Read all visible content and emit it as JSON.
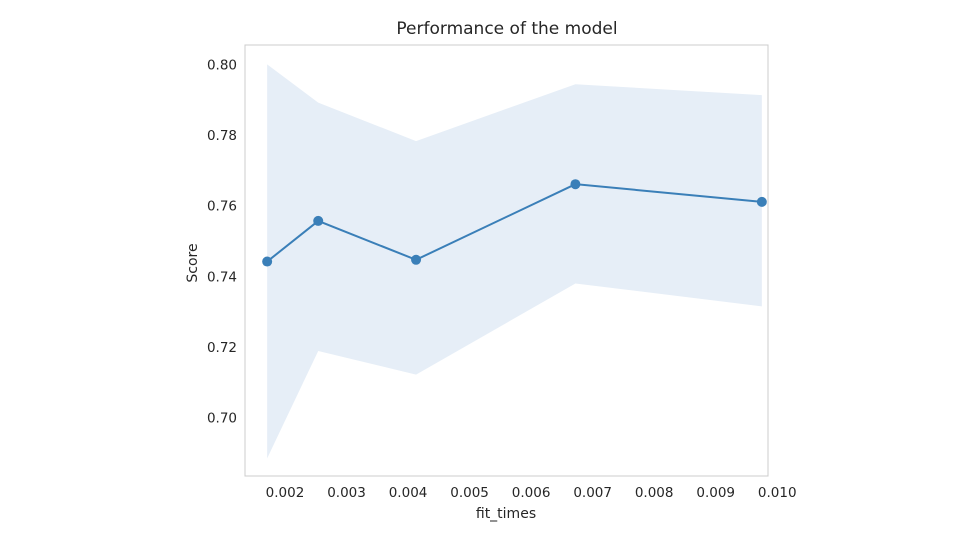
{
  "chart_data": {
    "type": "line",
    "title": "Performance of the model",
    "xlabel": "fit_times",
    "ylabel": "Score",
    "xlim": [
      0.00135,
      0.00985
    ],
    "ylim": [
      0.6835,
      0.8055
    ],
    "x_ticks": [
      "0.002",
      "0.003",
      "0.004",
      "0.005",
      "0.006",
      "0.007",
      "0.008",
      "0.009",
      "0.010"
    ],
    "y_ticks": [
      "0.70",
      "0.72",
      "0.74",
      "0.76",
      "0.78",
      "0.80"
    ],
    "grid": false,
    "series": [
      {
        "x": [
          0.00171,
          0.00254,
          0.00413,
          0.00672,
          0.00975
        ],
        "values": [
          0.7442,
          0.7557,
          0.7447,
          0.7661,
          0.7611
        ],
        "upper": [
          0.8,
          0.7892,
          0.7783,
          0.7944,
          0.7913
        ],
        "lower": [
          0.6885,
          0.7189,
          0.7122,
          0.738,
          0.7315
        ]
      }
    ],
    "colors": {
      "line": "#3a7fb8",
      "band": "#e6eef7",
      "frame": "#cccccc"
    }
  }
}
